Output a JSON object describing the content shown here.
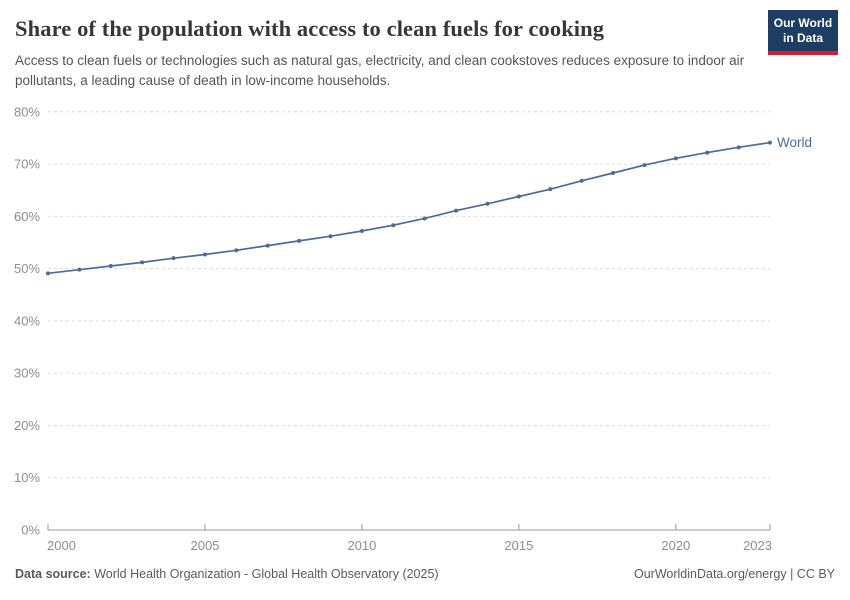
{
  "header": {
    "title": "Share of the population with access to clean fuels for cooking",
    "subtitle": "Access to clean fuels or technologies such as natural gas, electricity, and clean cookstoves reduces exposure to indoor air pollutants, a leading cause of death in low-income households.",
    "logo": {
      "line1": "Our World",
      "line2": "in Data",
      "bg_color": "#1d3d63",
      "bar_color": "#d21e2f"
    }
  },
  "chart_data": {
    "type": "line",
    "title": "Share of the population with access to clean fuels for cooking",
    "xlabel": "",
    "ylabel": "",
    "x": [
      2000,
      2001,
      2002,
      2003,
      2004,
      2005,
      2006,
      2007,
      2008,
      2009,
      2010,
      2011,
      2012,
      2013,
      2014,
      2015,
      2016,
      2017,
      2018,
      2019,
      2020,
      2021,
      2022,
      2023
    ],
    "series": [
      {
        "name": "World",
        "color": "#4c6a9c",
        "values": [
          49.1,
          49.8,
          50.5,
          51.2,
          52.0,
          52.7,
          53.5,
          54.4,
          55.3,
          56.2,
          57.2,
          58.3,
          59.6,
          61.1,
          62.4,
          63.8,
          65.2,
          66.8,
          68.3,
          69.8,
          71.1,
          72.2,
          73.2,
          74.1
        ]
      }
    ],
    "ylim": [
      0,
      80
    ],
    "ytick_step": 10,
    "ytick_suffix": "%",
    "xticks": [
      2000,
      2005,
      2010,
      2015,
      2020,
      2023
    ],
    "grid": "horizontal-dashed",
    "legend_position": "end-of-line",
    "colors": {
      "grid": "#dcdcdc",
      "axis": "#999999",
      "tick_label": "#8e8e8e"
    }
  },
  "footer": {
    "source_label": "Data source:",
    "source_text": " World Health Organization - Global Health Observatory (2025)",
    "license_text": "OurWorldinData.org/energy | CC BY"
  }
}
